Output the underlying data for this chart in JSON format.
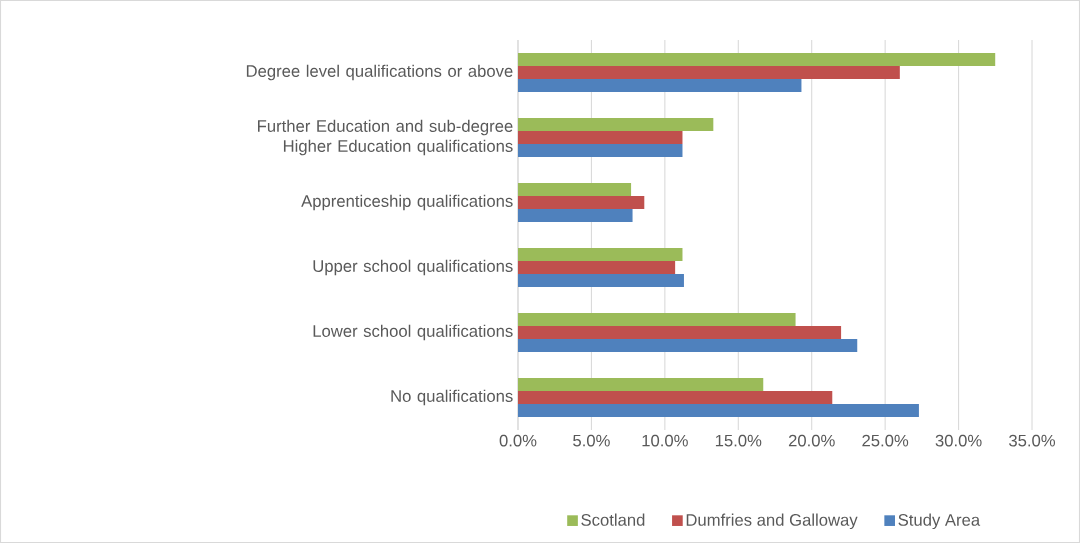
{
  "chart_data": {
    "type": "bar",
    "orientation": "horizontal",
    "categories": [
      "Degree level qualifications or above",
      "Further Education and sub-degree Higher Education qualifications",
      "Apprenticeship qualifications",
      "Upper school qualifications",
      "Lower school qualifications",
      "No qualifications"
    ],
    "series": [
      {
        "name": "Scotland",
        "color": "#9bbb59",
        "values": [
          32.5,
          13.3,
          7.7,
          11.2,
          18.9,
          16.7
        ]
      },
      {
        "name": "Dumfries and Galloway",
        "color": "#c0504d",
        "values": [
          26.0,
          11.2,
          8.6,
          10.7,
          22.0,
          21.4
        ]
      },
      {
        "name": "Study Area",
        "color": "#4f81bd",
        "values": [
          19.3,
          11.2,
          7.8,
          11.3,
          23.1,
          27.3
        ]
      }
    ],
    "xlim": [
      0,
      35
    ],
    "xticks": [
      {
        "value": 0,
        "label": "0.0%"
      },
      {
        "value": 5,
        "label": "5.0%"
      },
      {
        "value": 10,
        "label": "10.0%"
      },
      {
        "value": 15,
        "label": "15.0%"
      },
      {
        "value": 20,
        "label": "20.0%"
      },
      {
        "value": 25,
        "label": "25.0%"
      },
      {
        "value": 30,
        "label": "30.0%"
      },
      {
        "value": 35,
        "label": "35.0%"
      }
    ],
    "grid": "x",
    "legend": "bottom"
  }
}
